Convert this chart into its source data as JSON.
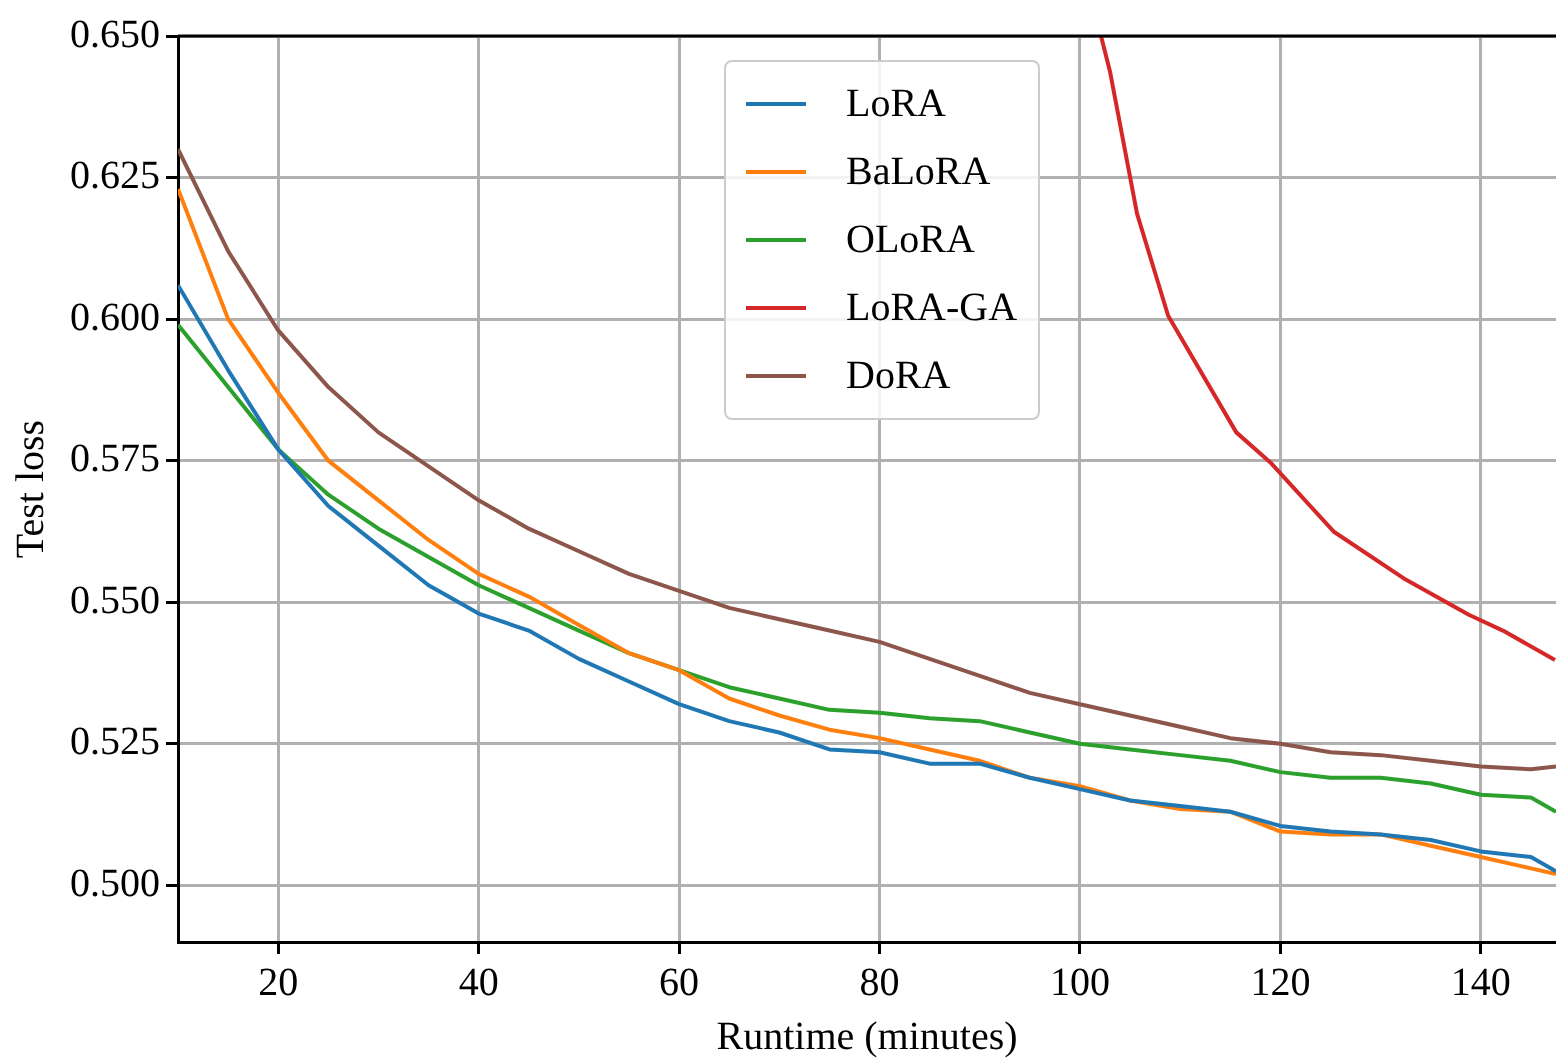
{
  "chart_data": {
    "type": "line",
    "xlabel": "Runtime (minutes)",
    "ylabel": "Test loss",
    "x": [
      10,
      15,
      20,
      25,
      30,
      35,
      40,
      45,
      50,
      55,
      60,
      65,
      70,
      75,
      80,
      85,
      90,
      95,
      100,
      105,
      110,
      115,
      120,
      125,
      130,
      135,
      140,
      145,
      147.5
    ],
    "series": [
      {
        "name": "LoRA",
        "color": "#1f77b4",
        "values": [
          0.606,
          0.591,
          0.577,
          0.567,
          0.56,
          0.553,
          0.548,
          0.545,
          0.54,
          0.536,
          0.532,
          0.529,
          0.527,
          0.524,
          0.5235,
          0.5215,
          0.5215,
          0.519,
          0.517,
          0.515,
          0.514,
          0.513,
          0.5105,
          0.5095,
          0.509,
          0.508,
          0.506,
          0.505,
          0.5025
        ]
      },
      {
        "name": "BaLoRA",
        "color": "#ff7f0e",
        "values": [
          0.623,
          0.6,
          0.587,
          0.575,
          0.568,
          0.561,
          0.555,
          0.551,
          0.546,
          0.541,
          0.538,
          0.533,
          0.53,
          0.5275,
          0.526,
          0.524,
          0.522,
          0.519,
          0.5175,
          0.515,
          0.5135,
          0.513,
          0.5095,
          0.509,
          0.509,
          0.507,
          0.505,
          0.503,
          0.502
        ]
      },
      {
        "name": "OLoRA",
        "color": "#2ca02c",
        "values": [
          0.599,
          0.588,
          0.577,
          0.569,
          0.563,
          0.558,
          0.553,
          0.549,
          0.545,
          0.541,
          0.538,
          0.535,
          0.533,
          0.531,
          0.5305,
          0.5295,
          0.529,
          0.527,
          0.525,
          0.524,
          0.523,
          0.522,
          0.52,
          0.519,
          0.519,
          0.518,
          0.516,
          0.5155,
          0.513
        ]
      },
      {
        "name": "LoRA-GA",
        "color": "#d62728",
        "x": [
          102.1,
          103,
          105.7,
          108.8,
          115.6,
          119,
          125.3,
          132.5,
          138.8,
          142.2,
          147.4
        ],
        "values": [
          0.65,
          0.6437,
          0.6186,
          0.6006,
          0.58,
          0.5747,
          0.5625,
          0.554,
          0.5478,
          0.545,
          0.5398
        ]
      },
      {
        "name": "DoRA",
        "color": "#8c564b",
        "values": [
          0.63,
          0.612,
          0.598,
          0.588,
          0.58,
          0.574,
          0.568,
          0.563,
          0.559,
          0.555,
          0.552,
          0.549,
          0.547,
          0.545,
          0.543,
          0.54,
          0.537,
          0.534,
          0.532,
          0.53,
          0.528,
          0.526,
          0.525,
          0.5235,
          0.523,
          0.522,
          0.521,
          0.5205,
          0.521
        ]
      }
    ],
    "xlim": [
      10,
      147.5
    ],
    "xticks": [
      20,
      40,
      60,
      80,
      100,
      120,
      140
    ],
    "ylim": [
      0.49,
      0.65
    ],
    "yticks": [
      {
        "value": 0.5,
        "label": "0.500"
      },
      {
        "value": 0.525,
        "label": "0.525"
      },
      {
        "value": 0.55,
        "label": "0.550"
      },
      {
        "value": 0.575,
        "label": "0.575"
      },
      {
        "value": 0.6,
        "label": "0.600"
      },
      {
        "value": 0.625,
        "label": "0.625"
      },
      {
        "value": 0.65,
        "label": "0.650"
      }
    ],
    "grid": true,
    "legend": "top",
    "marker": "none",
    "line_style": "solid"
  }
}
